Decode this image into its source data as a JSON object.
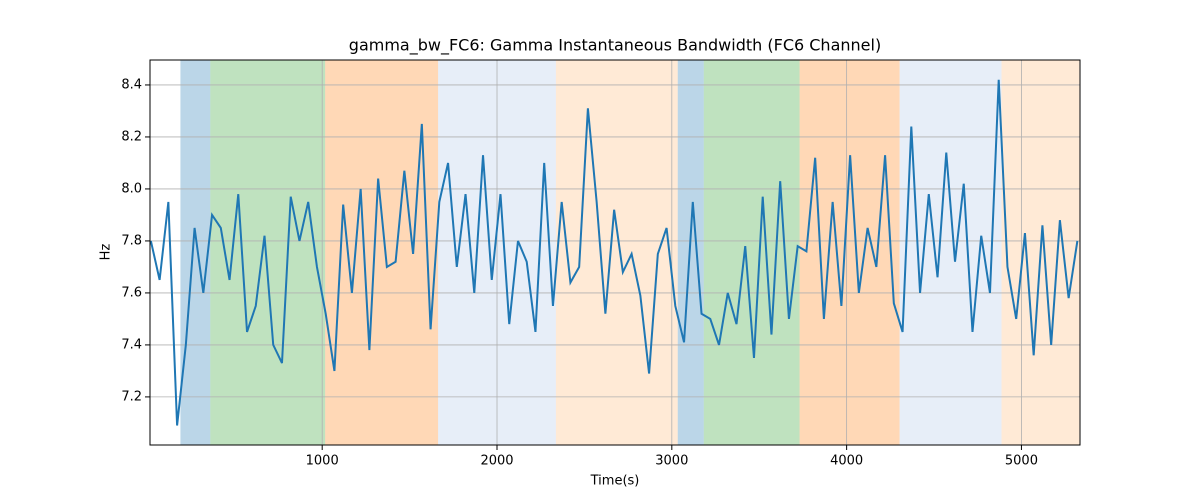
{
  "chart_data": {
    "type": "line",
    "title": "gamma_bw_FC6: Gamma Instantaneous Bandwidth (FC6 Channel)",
    "xlabel": "Time(s)",
    "ylabel": "Hz",
    "xlim": [
      15,
      5335
    ],
    "ylim": [
      7.015,
      8.496
    ],
    "xticks": [
      1000,
      2000,
      3000,
      4000,
      5000
    ],
    "yticks": [
      7.2,
      7.4,
      7.6,
      7.8,
      {
        "value": 8,
        "label": "8.0"
      },
      8.2,
      8.4
    ],
    "grid": true,
    "spans": [
      {
        "start": 189,
        "end": 360,
        "color": "#1f77b4",
        "opacity": 0.3
      },
      {
        "start": 360,
        "end": 1017,
        "color": "#2ca02c",
        "opacity": 0.3
      },
      {
        "start": 1017,
        "end": 1663,
        "color": "#ff7f0e",
        "opacity": 0.3
      },
      {
        "start": 1663,
        "end": 2337,
        "color": "#aec7e8",
        "opacity": 0.3
      },
      {
        "start": 2337,
        "end": 3034,
        "color": "#ffbb78",
        "opacity": 0.3
      },
      {
        "start": 3034,
        "end": 3183,
        "color": "#1f77b4",
        "opacity": 0.3
      },
      {
        "start": 3183,
        "end": 3731,
        "color": "#2ca02c",
        "opacity": 0.3
      },
      {
        "start": 3731,
        "end": 4303,
        "color": "#ff7f0e",
        "opacity": 0.3
      },
      {
        "start": 4303,
        "end": 4886,
        "color": "#aec7e8",
        "opacity": 0.3
      },
      {
        "start": 4886,
        "end": 5331,
        "color": "#ffbb78",
        "opacity": 0.3
      }
    ],
    "series": [
      {
        "color": "#1f77b4",
        "x": [
          20,
          70,
          120,
          170,
          220,
          270,
          320,
          370,
          420,
          470,
          520,
          570,
          620,
          670,
          720,
          770,
          820,
          870,
          920,
          970,
          1020,
          1070,
          1120,
          1170,
          1220,
          1270,
          1320,
          1370,
          1420,
          1470,
          1520,
          1570,
          1620,
          1670,
          1720,
          1770,
          1820,
          1870,
          1920,
          1970,
          2020,
          2070,
          2120,
          2170,
          2220,
          2270,
          2320,
          2370,
          2420,
          2470,
          2520,
          2570,
          2620,
          2670,
          2720,
          2770,
          2820,
          2870,
          2920,
          2970,
          3020,
          3070,
          3120,
          3170,
          3220,
          3270,
          3320,
          3370,
          3420,
          3470,
          3520,
          3570,
          3620,
          3670,
          3720,
          3770,
          3820,
          3870,
          3920,
          3970,
          4020,
          4070,
          4120,
          4170,
          4220,
          4270,
          4320,
          4370,
          4420,
          4470,
          4520,
          4570,
          4620,
          4670,
          4720,
          4770,
          4820,
          4870,
          4920,
          4970,
          5020,
          5070,
          5120,
          5170,
          5220,
          5270,
          5320
        ],
        "values": [
          7.8,
          7.65,
          7.95,
          7.09,
          7.4,
          7.85,
          7.6,
          7.9,
          7.85,
          7.65,
          7.98,
          7.45,
          7.55,
          7.82,
          7.4,
          7.33,
          7.97,
          7.8,
          7.95,
          7.7,
          7.52,
          7.3,
          7.94,
          7.6,
          8.0,
          7.38,
          8.04,
          7.7,
          7.72,
          8.07,
          7.75,
          8.25,
          7.46,
          7.95,
          8.1,
          7.7,
          7.98,
          7.6,
          8.13,
          7.65,
          7.98,
          7.48,
          7.8,
          7.72,
          7.45,
          8.1,
          7.55,
          7.95,
          7.64,
          7.7,
          8.31,
          7.95,
          7.52,
          7.92,
          7.68,
          7.75,
          7.59,
          7.29,
          7.75,
          7.85,
          7.55,
          7.41,
          7.95,
          7.52,
          7.5,
          7.4,
          7.6,
          7.48,
          7.78,
          7.35,
          7.97,
          7.44,
          8.03,
          7.5,
          7.78,
          7.76,
          8.12,
          7.5,
          7.95,
          7.55,
          8.13,
          7.6,
          7.85,
          7.7,
          8.13,
          7.56,
          7.45,
          8.24,
          7.6,
          7.98,
          7.66,
          8.14,
          7.72,
          8.02,
          7.45,
          7.82,
          7.6,
          8.42,
          7.7,
          7.5,
          7.83,
          7.36,
          7.86,
          7.4,
          7.88,
          7.58,
          7.8
        ]
      }
    ]
  }
}
